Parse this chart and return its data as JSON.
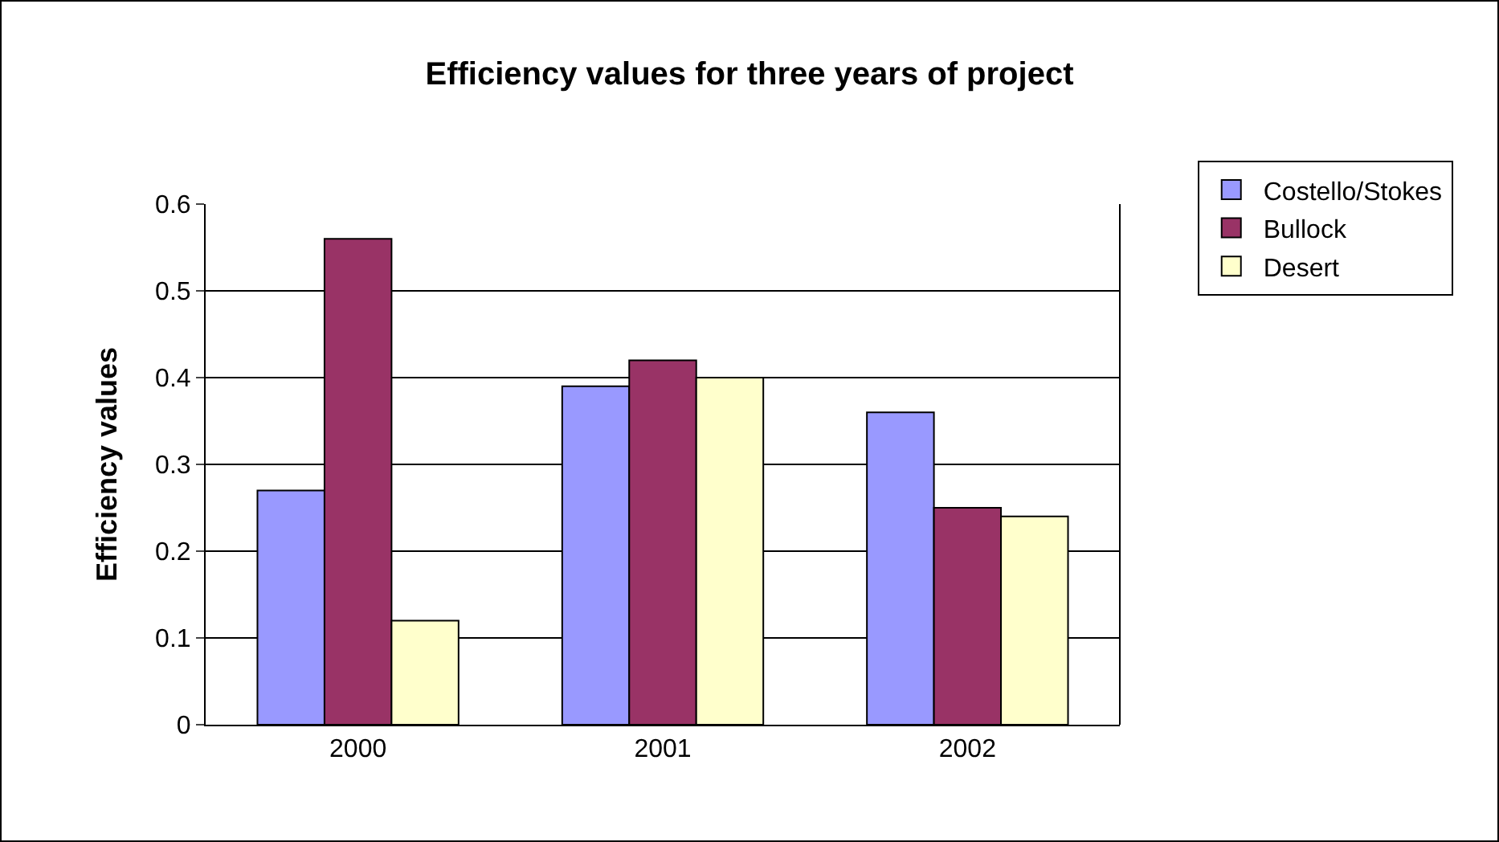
{
  "chart_data": {
    "type": "bar",
    "title": "Efficiency values for three years of project",
    "ylabel": "Efficiency values",
    "categories": [
      "2000",
      "2001",
      "2002"
    ],
    "series": [
      {
        "name": "Costello/Stokes",
        "color": "#9999ff",
        "values": [
          0.27,
          0.39,
          0.36
        ]
      },
      {
        "name": "Bullock",
        "color": "#993366",
        "values": [
          0.56,
          0.42,
          0.25
        ]
      },
      {
        "name": "Desert",
        "color": "#ffffcc",
        "values": [
          0.12,
          0.4,
          0.24
        ]
      }
    ],
    "ylim": [
      0,
      0.6
    ],
    "yticks": [
      0,
      0.1,
      0.2,
      0.3,
      0.4,
      0.5,
      0.6
    ],
    "grid": "y",
    "legend": "top right"
  }
}
